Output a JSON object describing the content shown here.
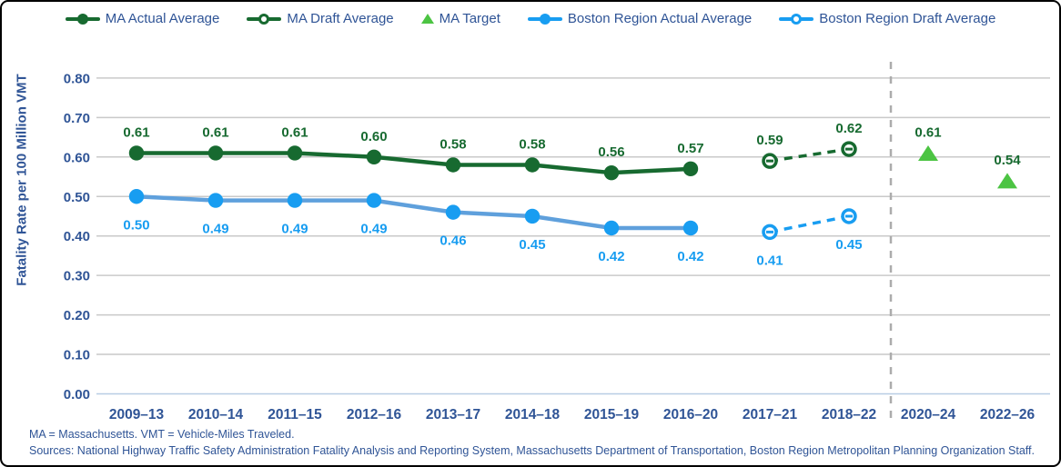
{
  "colors": {
    "ma_green": "#176A30",
    "target_green": "#4CC443",
    "boston_blue": "#189DF1",
    "boston_line_blue": "#5FA0DC",
    "axis_text": "#2F5496",
    "grid": "#C9C9C9",
    "baseline": "#B8CCE4",
    "divider": "#ACACAC"
  },
  "legend": {
    "items": [
      {
        "label": "MA Actual Average",
        "swatch": "line-filled",
        "color": "ma_green"
      },
      {
        "label": "MA Draft Average",
        "swatch": "line-open",
        "color": "ma_green"
      },
      {
        "label": "MA Target",
        "swatch": "triangle",
        "color": "target_green"
      },
      {
        "label": "Boston Region Actual Average",
        "swatch": "line-filled",
        "color": "boston_blue"
      },
      {
        "label": "Boston Region Draft Average",
        "swatch": "line-open",
        "color": "boston_blue"
      }
    ]
  },
  "chart_data": {
    "type": "line",
    "title": "",
    "xlabel": "",
    "ylabel": "Fatality Rate per 100 Million VMT",
    "ylim": [
      0.0,
      0.8
    ],
    "yticks": [
      "0.00",
      "0.10",
      "0.20",
      "0.30",
      "0.40",
      "0.50",
      "0.60",
      "0.70",
      "0.80"
    ],
    "grid": true,
    "legend_position": "top",
    "divider_between": [
      "2018–22",
      "2020–24"
    ],
    "categories": [
      "2009–13",
      "2010–14",
      "2011–15",
      "2012–16",
      "2013–17",
      "2014–18",
      "2015–19",
      "2016–20",
      "2017–21",
      "2018–22",
      "2020–24",
      "2022–26"
    ],
    "series": [
      {
        "id": "ma-actual",
        "name": "MA Actual Average",
        "style": "solid",
        "marker": "filled-circle",
        "color": "ma_green",
        "label_side": "above",
        "values": [
          0.61,
          0.61,
          0.61,
          0.6,
          0.58,
          0.58,
          0.56,
          0.57,
          null,
          null,
          null,
          null
        ]
      },
      {
        "id": "ma-draft",
        "name": "MA Draft Average",
        "style": "dashed",
        "marker": "open-circle",
        "color": "ma_green",
        "label_side": "above",
        "values": [
          null,
          null,
          null,
          null,
          null,
          null,
          null,
          null,
          0.59,
          0.62,
          null,
          null
        ]
      },
      {
        "id": "ma-target",
        "name": "MA Target",
        "style": "none",
        "marker": "triangle",
        "color": "target_green",
        "label_color": "ma_green",
        "label_side": "above",
        "values": [
          null,
          null,
          null,
          null,
          null,
          null,
          null,
          null,
          null,
          null,
          0.61,
          0.54
        ]
      },
      {
        "id": "boston-actual",
        "name": "Boston Region Actual Average",
        "style": "solid",
        "marker": "filled-circle",
        "color": "boston_blue",
        "line_color": "boston_line_blue",
        "label_side": "below",
        "values": [
          0.5,
          0.49,
          0.49,
          0.49,
          0.46,
          0.45,
          0.42,
          0.42,
          null,
          null,
          null,
          null
        ]
      },
      {
        "id": "boston-draft",
        "name": "Boston Region Draft Average",
        "style": "dashed",
        "marker": "open-circle",
        "color": "boston_blue",
        "label_side": "below",
        "values": [
          null,
          null,
          null,
          null,
          null,
          null,
          null,
          null,
          0.41,
          0.45,
          null,
          null
        ]
      }
    ]
  },
  "footer": {
    "note": "MA = Massachusetts. VMT = Vehicle-Miles Traveled.",
    "sources": "Sources: National Highway Traffic Safety Administration Fatality Analysis and Reporting System, Massachusetts Department of Transportation, Boston Region Metropolitan Planning Organization Staff."
  }
}
